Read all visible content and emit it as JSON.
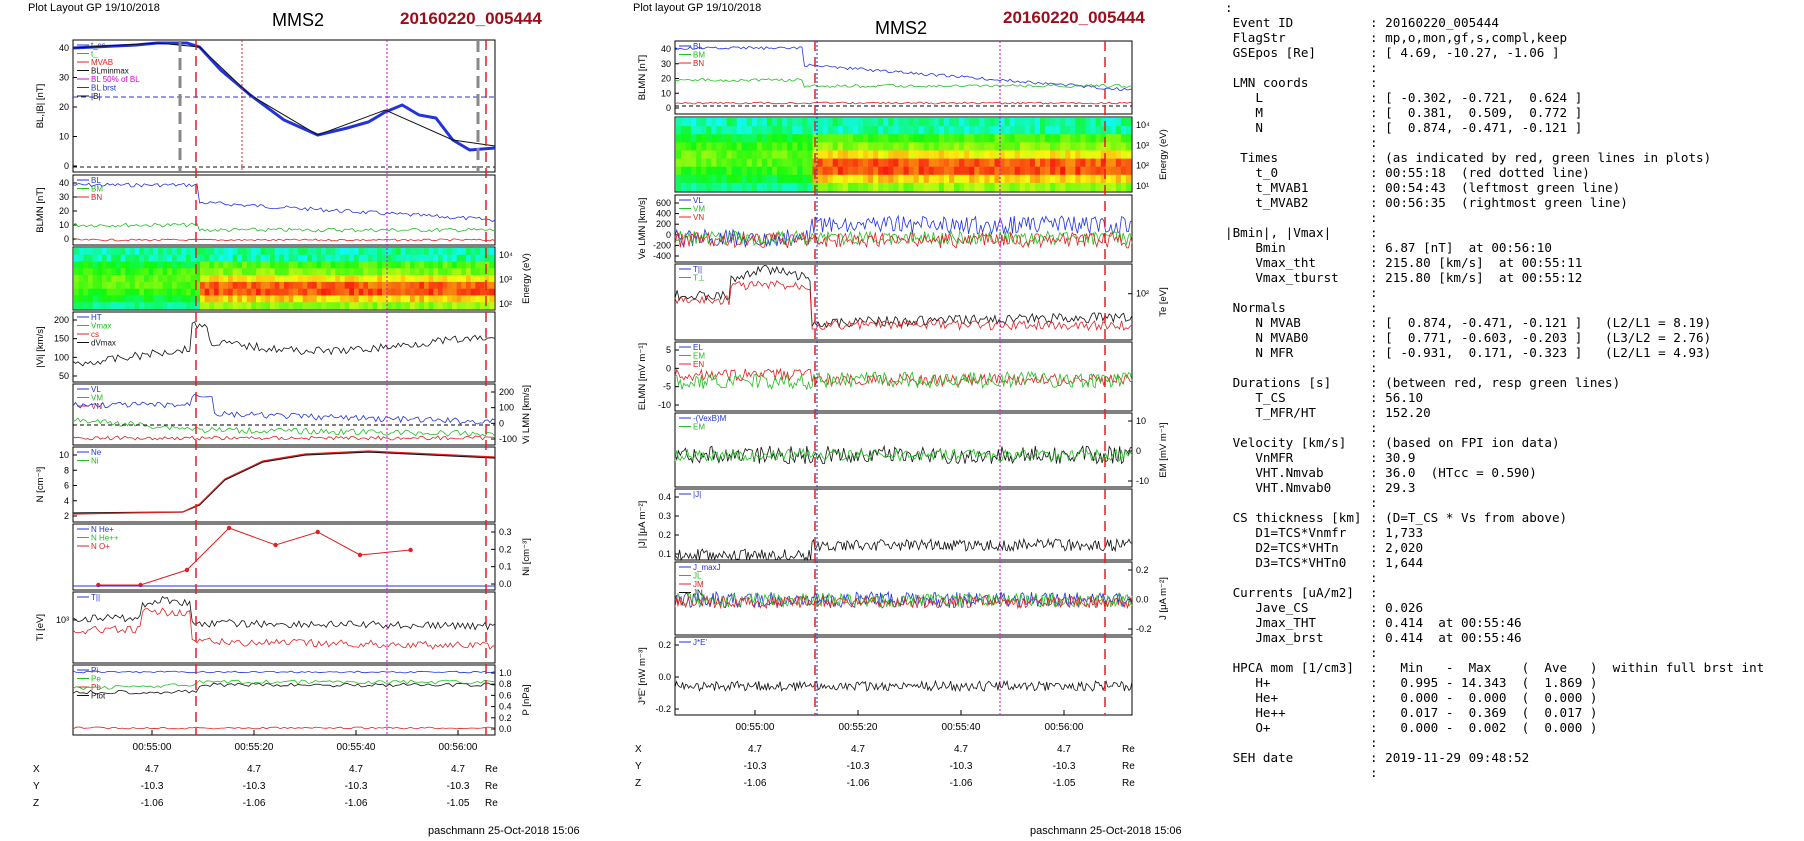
{
  "left": {
    "header_left": "Plot Layout GP 19/10/2018",
    "title": "MMS2",
    "event": "20160220_005444",
    "footer": "paschmann 25-Oct-2018 15:06",
    "time_ticks": [
      "00:55:00",
      "00:55:20",
      "00:55:40",
      "00:56:00"
    ],
    "coords": {
      "rows": [
        {
          "name": "X",
          "values": [
            "4.7",
            "4.7",
            "4.7",
            "4.7"
          ],
          "unit": "Re"
        },
        {
          "name": "Y",
          "values": [
            "-10.3",
            "-10.3",
            "-10.3",
            "-10.3"
          ],
          "unit": "Re"
        },
        {
          "name": "Z",
          "values": [
            "-1.06",
            "-1.06",
            "-1.06",
            "-1.05"
          ],
          "unit": "Re"
        }
      ]
    },
    "panels": [
      {
        "ylabel": "BL,|B| [nT]",
        "ticks": [
          "40",
          "30",
          "20",
          "10",
          "0"
        ],
        "legend": [
          "t_cs",
          "t_",
          "MVAB",
          "BLminmax",
          "BL 50% of BL",
          "BL brst",
          "|B|"
        ]
      },
      {
        "ylabel": "BLMN [nT]",
        "ticks": [
          "40",
          "30",
          "20",
          "10",
          "0"
        ],
        "legend": [
          "BL",
          "BM",
          "BN"
        ]
      },
      {
        "ylabel": "Energy (eV)",
        "ticks": [
          "10⁴",
          "10³",
          "10²"
        ]
      },
      {
        "ylabel": "|Vi| [km/s]",
        "ticks": [
          "200",
          "150",
          "100",
          "50"
        ],
        "legend": [
          "HT",
          "Vmax",
          "cs",
          "dVmax"
        ]
      },
      {
        "ylabel": "Vi LMN [km/s]",
        "ticks": [
          "200",
          "100",
          "0",
          "-100"
        ],
        "legend": [
          "VL",
          "VM",
          "VN"
        ]
      },
      {
        "ylabel": "N [cm⁻³]",
        "ticks": [
          "10",
          "8",
          "6",
          "4",
          "2"
        ],
        "legend": [
          "Ne",
          "Ni"
        ]
      },
      {
        "ylabel": "Ni [cm⁻³]",
        "ticks": [
          "0.3",
          "0.2",
          "0.1",
          "0.0"
        ],
        "legend": [
          "N He+",
          "N He++",
          "N O+"
        ]
      },
      {
        "ylabel": "Ti [eV]",
        "ticks": [
          "10³"
        ],
        "legend": [
          "T||"
        ]
      },
      {
        "ylabel": "P [nPa]",
        "ticks": [
          "1.0",
          "0.8",
          "0.6",
          "0.4",
          "0.2",
          "0.0"
        ],
        "legend": [
          "Pi",
          "Pe",
          "Pb",
          "Ptot"
        ]
      }
    ]
  },
  "right": {
    "header_left": "Plot layout GP 19/10/2018",
    "title": "MMS2",
    "event": "20160220_005444",
    "footer": "paschmann 25-Oct-2018 15:06",
    "time_ticks": [
      "00:55:00",
      "00:55:20",
      "00:55:40",
      "00:56:00"
    ],
    "coords": {
      "rows": [
        {
          "name": "X",
          "values": [
            "4.7",
            "4.7",
            "4.7",
            "4.7"
          ],
          "unit": "Re"
        },
        {
          "name": "Y",
          "values": [
            "-10.3",
            "-10.3",
            "-10.3",
            "-10.3"
          ],
          "unit": "Re"
        },
        {
          "name": "Z",
          "values": [
            "-1.06",
            "-1.06",
            "-1.06",
            "-1.05"
          ],
          "unit": "Re"
        }
      ]
    },
    "panels": [
      {
        "ylabel": "BLMN [nT]",
        "ticks": [
          "40",
          "30",
          "20",
          "10",
          "0"
        ],
        "legend": [
          "BL",
          "BM",
          "BN"
        ]
      },
      {
        "ylabel": "Energy (eV)",
        "ticks": [
          "10⁴",
          "10³",
          "10²",
          "10¹"
        ]
      },
      {
        "ylabel": "Ve LMN [km/s]",
        "ticks": [
          "600",
          "400",
          "200",
          "0",
          "-200",
          "-400"
        ],
        "legend": [
          "VL",
          "VM",
          "VN"
        ]
      },
      {
        "ylabel": "Te [eV]",
        "ticks": [
          "10²"
        ],
        "legend": [
          "T||",
          "T⊥"
        ]
      },
      {
        "ylabel": "ELMN [mV m⁻¹]",
        "ticks": [
          "5",
          "0",
          "-5",
          "-10"
        ],
        "legend": [
          "EL",
          "EM",
          "EN"
        ]
      },
      {
        "ylabel": "EM [mV m⁻¹]",
        "ticks": [
          "10",
          "0",
          "-10"
        ],
        "legend": [
          "-(VexB)M",
          "EM"
        ]
      },
      {
        "ylabel": "|J| [μA m⁻²]",
        "ticks": [
          "0.4",
          "0.3",
          "0.2",
          "0.1"
        ],
        "legend": [
          "|J|"
        ]
      },
      {
        "ylabel": "J [μA m⁻²]",
        "ticks": [
          "0.2",
          "0.0",
          "-0.2"
        ],
        "legend": [
          "J_maxJ",
          "JL",
          "JM",
          "JN"
        ]
      },
      {
        "ylabel": "J*E' [nW m⁻³]",
        "ticks": [
          "0.2",
          "0.0",
          "-0.2"
        ],
        "legend": [
          "J*E'"
        ]
      }
    ]
  },
  "info": [
    {
      "k": ":",
      "v": ""
    },
    {
      "k": " Event ID",
      "v": ": 20160220_005444"
    },
    {
      "k": " FlagStr",
      "v": ": mp,o,mon,gf,s,compl,keep"
    },
    {
      "k": " GSEpos [Re]",
      "v": ": [ 4.69, -10.27, -1.06 ]"
    },
    {
      "k": "",
      "v": ":"
    },
    {
      "k": " LMN coords",
      "v": ":"
    },
    {
      "k": "    L",
      "v": ": [ -0.302, -0.721,  0.624 ]"
    },
    {
      "k": "    M",
      "v": ": [  0.381,  0.509,  0.772 ]"
    },
    {
      "k": "    N",
      "v": ": [  0.874, -0.471, -0.121 ]"
    },
    {
      "k": "",
      "v": ":"
    },
    {
      "k": "  Times",
      "v": ": (as indicated by red, green lines in plots)"
    },
    {
      "k": "    t_0",
      "v": ": 00:55:18  (red dotted line)"
    },
    {
      "k": "    t_MVAB1",
      "v": ": 00:54:43  (leftmost green line)"
    },
    {
      "k": "    t_MVAB2",
      "v": ": 00:56:35  (rightmost green line)"
    },
    {
      "k": "",
      "v": ":"
    },
    {
      "k": "|Bmin|, |Vmax|",
      "v": ":"
    },
    {
      "k": "    Bmin",
      "v": ": 6.87 [nT]  at 00:56:10"
    },
    {
      "k": "    Vmax_tht",
      "v": ": 215.80 [km/s]  at 00:55:11"
    },
    {
      "k": "    Vmax_tburst",
      "v": ": 215.80 [km/s]  at 00:55:12"
    },
    {
      "k": "",
      "v": ":"
    },
    {
      "k": " Normals",
      "v": ":"
    },
    {
      "k": "    N MVAB",
      "v": ": [  0.874, -0.471, -0.121 ]   (L2/L1 = 8.19)"
    },
    {
      "k": "    N MVAB0",
      "v": ": [  0.771, -0.603, -0.203 ]   (L3/L2 = 2.76)"
    },
    {
      "k": "    N MFR",
      "v": ": [ -0.931,  0.171, -0.323 ]   (L2/L1 = 4.93)"
    },
    {
      "k": "",
      "v": ":"
    },
    {
      "k": " Durations [s]",
      "v": ": (between red, resp green lines)"
    },
    {
      "k": "    T_CS",
      "v": ": 56.10"
    },
    {
      "k": "    T_MFR/HT",
      "v": ": 152.20"
    },
    {
      "k": "",
      "v": ":"
    },
    {
      "k": " Velocity [km/s]",
      "v": ": (based on FPI ion data)"
    },
    {
      "k": "    VnMFR",
      "v": ": 30.9"
    },
    {
      "k": "    VHT.Nmvab",
      "v": ": 36.0  (HTcc = 0.590)"
    },
    {
      "k": "    VHT.Nmvab0",
      "v": ": 29.3"
    },
    {
      "k": "",
      "v": ":"
    },
    {
      "k": " CS thickness [km]",
      "v": ": (D=T_CS * Vs from above)"
    },
    {
      "k": "    D1=TCS*Vnmfr",
      "v": ": 1,733"
    },
    {
      "k": "    D2=TCS*VHTn",
      "v": ": 2,020"
    },
    {
      "k": "    D3=TCS*VHTn0",
      "v": ": 1,644"
    },
    {
      "k": "",
      "v": ":"
    },
    {
      "k": " Currents [uA/m2]",
      "v": ":"
    },
    {
      "k": "    Jave_CS",
      "v": ": 0.026"
    },
    {
      "k": "    Jmax_THT",
      "v": ": 0.414  at 00:55:46"
    },
    {
      "k": "    Jmax_brst",
      "v": ": 0.414  at 00:55:46"
    },
    {
      "k": "",
      "v": ":"
    },
    {
      "k": " HPCA mom [1/cm3]",
      "v": ":   Min   -  Max    (  Ave   )  within full brst int"
    },
    {
      "k": "    H+",
      "v": ":   0.995 - 14.343  (  1.869 )"
    },
    {
      "k": "    He+",
      "v": ":   0.000 -  0.000  (  0.000 )"
    },
    {
      "k": "    He++",
      "v": ":   0.017 -  0.369  (  0.017 )"
    },
    {
      "k": "    O+",
      "v": ":   0.000 -  0.002  (  0.000 )"
    },
    {
      "k": "",
      "v": ":"
    },
    {
      "k": " SEH date",
      "v": ": 2019-11-29 09:48:52"
    },
    {
      "k": "",
      "v": ":"
    }
  ],
  "colors": {
    "event": "#9b0d1a",
    "blue": "#2233dd",
    "red": "#e02020",
    "green": "#20c020",
    "black": "#111111",
    "magenta": "#dd00dd"
  }
}
